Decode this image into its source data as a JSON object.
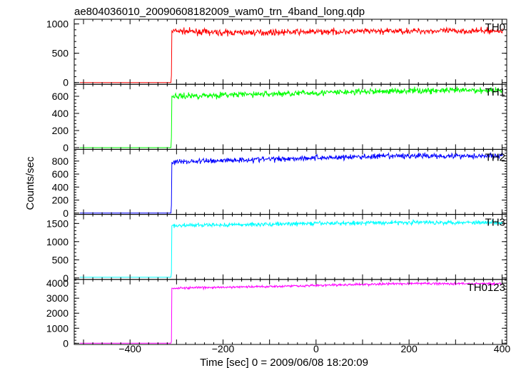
{
  "chart_data": {
    "type": "line",
    "title": "ae804036010_20090608182009_wam0_trn_4band_long.qdp",
    "xlabel": "Time [sec] 0 = 2009/06/08 18:20:09",
    "ylabel": "Counts/sec",
    "xlim": [
      -520,
      410
    ],
    "xticks": [
      -400,
      -200,
      0,
      200,
      400
    ],
    "xtick_labels": [
      "−400",
      "−200",
      "0",
      "200",
      "400"
    ],
    "grid": false,
    "panels": [
      {
        "name": "TH0",
        "color": "#ff0000",
        "ylim": [
          -30,
          1080
        ],
        "yticks": [
          0,
          500,
          1000
        ],
        "pre_level": 0,
        "rise_time": -312,
        "segments": [
          {
            "x": -305,
            "y": 880
          },
          {
            "x": -200,
            "y": 850
          },
          {
            "x": 0,
            "y": 865
          },
          {
            "x": 200,
            "y": 880
          },
          {
            "x": 400,
            "y": 880
          }
        ],
        "noise": 35
      },
      {
        "name": "TH1",
        "color": "#00ff00",
        "ylim": [
          -20,
          740
        ],
        "yticks": [
          0,
          200,
          400,
          600
        ],
        "pre_level": 0,
        "rise_time": -312,
        "segments": [
          {
            "x": -305,
            "y": 600
          },
          {
            "x": -200,
            "y": 615
          },
          {
            "x": 0,
            "y": 640
          },
          {
            "x": 200,
            "y": 665
          },
          {
            "x": 400,
            "y": 670
          }
        ],
        "noise": 25
      },
      {
        "name": "TH2",
        "color": "#0000ff",
        "ylim": [
          -20,
          980
        ],
        "yticks": [
          0,
          200,
          400,
          600,
          800
        ],
        "pre_level": 0,
        "rise_time": -312,
        "segments": [
          {
            "x": -305,
            "y": 785
          },
          {
            "x": -200,
            "y": 810
          },
          {
            "x": 0,
            "y": 850
          },
          {
            "x": 200,
            "y": 880
          },
          {
            "x": 400,
            "y": 880
          }
        ],
        "noise": 30
      },
      {
        "name": "TH3",
        "color": "#00ffff",
        "ylim": [
          -40,
          1750
        ],
        "yticks": [
          0,
          500,
          1000,
          1500
        ],
        "pre_level": 20,
        "rise_time": -312,
        "segments": [
          {
            "x": -305,
            "y": 1440
          },
          {
            "x": -200,
            "y": 1460
          },
          {
            "x": 0,
            "y": 1500
          },
          {
            "x": 200,
            "y": 1530
          },
          {
            "x": 400,
            "y": 1530
          }
        ],
        "noise": 40
      },
      {
        "name": "TH0123",
        "color": "#ff00ff",
        "ylim": [
          -80,
          4250
        ],
        "yticks": [
          0,
          1000,
          2000,
          3000,
          4000
        ],
        "pre_level": 0,
        "rise_time": -312,
        "segments": [
          {
            "x": -305,
            "y": 3670
          },
          {
            "x": -200,
            "y": 3720
          },
          {
            "x": 0,
            "y": 3850
          },
          {
            "x": 200,
            "y": 3980
          },
          {
            "x": 400,
            "y": 3960
          }
        ],
        "noise": 55
      }
    ]
  }
}
